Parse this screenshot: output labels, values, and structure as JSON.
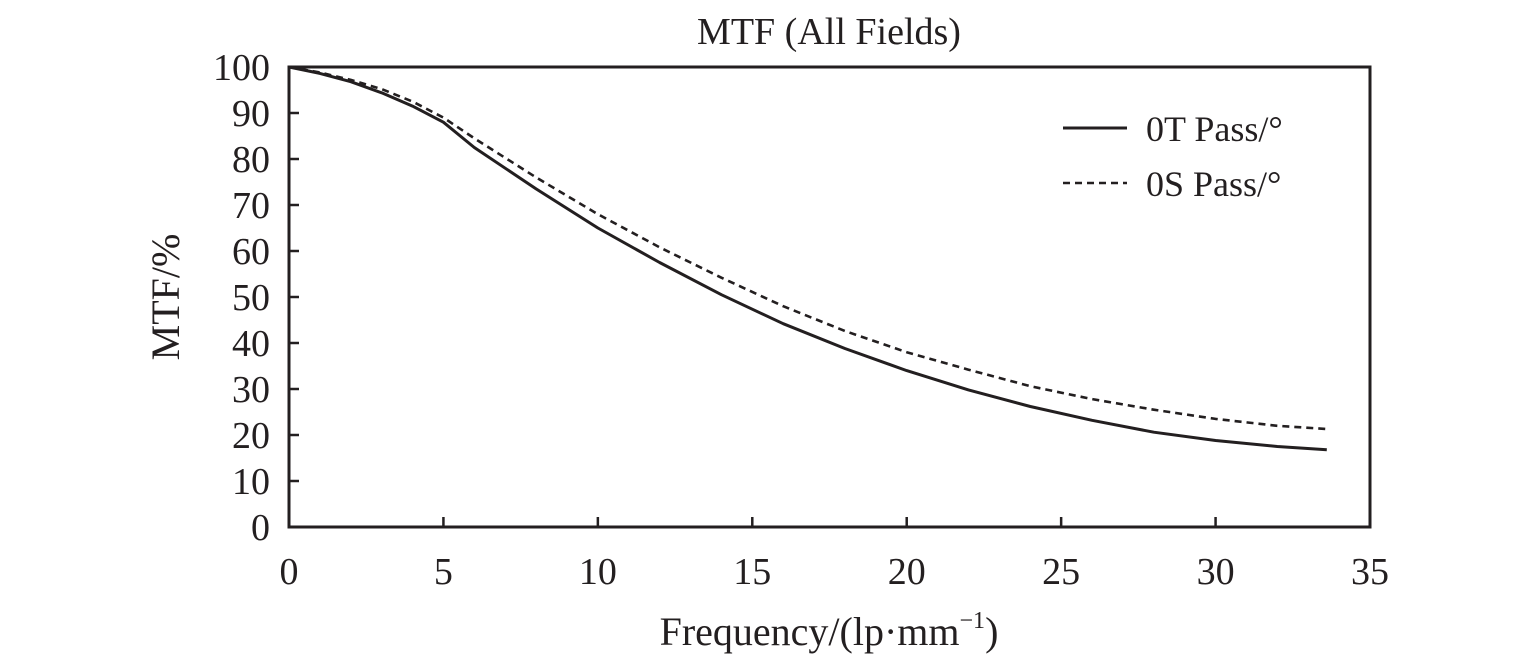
{
  "chart_data": {
    "type": "line",
    "title": "MTF (All Fields)",
    "xlabel": "Frequency/(lp·mm",
    "xlabel_superscript": "−1",
    "xlabel_suffix": ")",
    "ylabel": "MTF/%",
    "xlim": [
      0,
      35
    ],
    "ylim": [
      0,
      100
    ],
    "xticks": [
      0,
      5,
      10,
      15,
      20,
      25,
      30,
      35
    ],
    "yticks": [
      0,
      10,
      20,
      30,
      40,
      50,
      60,
      70,
      80,
      90,
      100
    ],
    "grid": false,
    "legend_position": "top-right",
    "series": [
      {
        "name": "0T Pass/°",
        "line_style": "solid",
        "color": "#231f20",
        "x": [
          0,
          1,
          2,
          3,
          4,
          5,
          6,
          8,
          10,
          12,
          14,
          16,
          18,
          20,
          22,
          24,
          26,
          28,
          30,
          32,
          33.6
        ],
        "y": [
          100,
          98.6,
          96.8,
          94.4,
          91.5,
          88.0,
          82.5,
          73.5,
          65.0,
          57.5,
          50.5,
          44.2,
          38.8,
          34.0,
          29.8,
          26.2,
          23.2,
          20.6,
          18.8,
          17.5,
          16.8
        ]
      },
      {
        "name": "0S Pass/°",
        "line_style": "dashed",
        "color": "#231f20",
        "x": [
          0,
          1,
          2,
          3,
          4,
          5,
          6,
          8,
          10,
          12,
          14,
          16,
          18,
          20,
          22,
          24,
          26,
          28,
          30,
          32,
          33.6
        ],
        "y": [
          100,
          98.8,
          97.2,
          95.2,
          92.5,
          89.0,
          84.5,
          76.0,
          68.0,
          60.8,
          54.2,
          48.0,
          42.6,
          38.0,
          34.2,
          30.6,
          27.8,
          25.5,
          23.5,
          22.0,
          21.3
        ]
      }
    ]
  }
}
